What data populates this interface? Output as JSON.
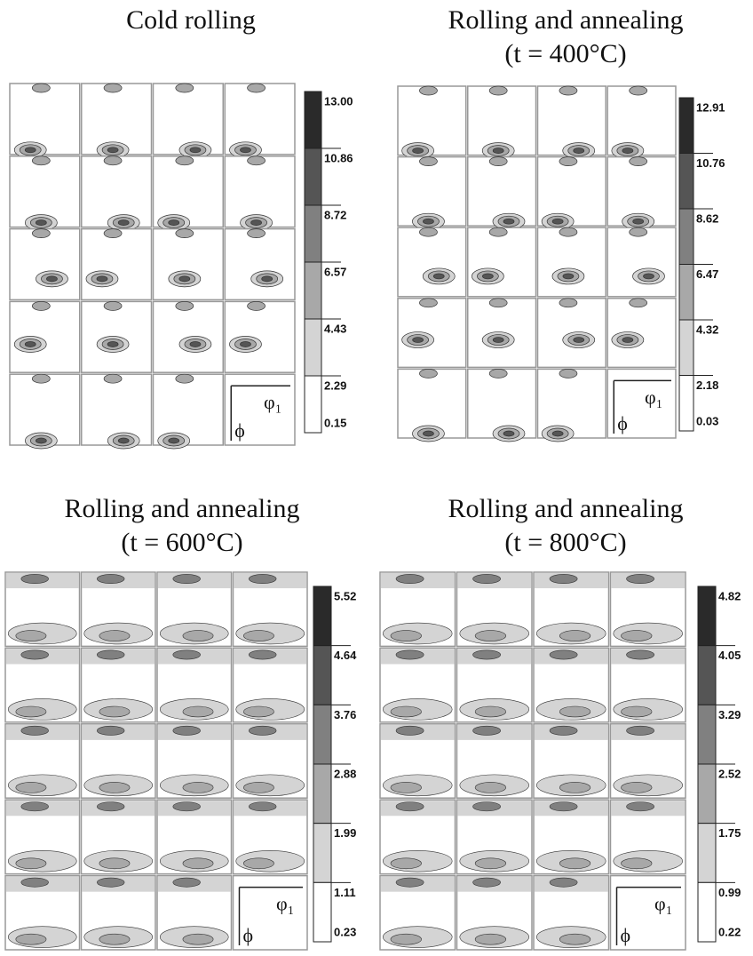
{
  "panels": [
    {
      "title": [
        "Cold rolling"
      ],
      "scale": [
        "13.00",
        "10.86",
        "8.72",
        "6.57",
        "4.43",
        "2.29",
        "0.15"
      ],
      "axis_x": "φ₁",
      "axis_y": "ϕ"
    },
    {
      "title": [
        "Rolling and annealing",
        "(t = 400°C)"
      ],
      "scale": [
        "12.91",
        "10.76",
        "8.62",
        "6.47",
        "4.32",
        "2.18",
        "0.03"
      ],
      "axis_x": "φ₁",
      "axis_y": "ϕ"
    },
    {
      "title": [
        "Rolling and annealing",
        "(t = 600°C)"
      ],
      "scale": [
        "5.52",
        "4.64",
        "3.76",
        "2.88",
        "1.99",
        "1.11",
        "0.23"
      ],
      "axis_x": "φ₁",
      "axis_y": "ϕ"
    },
    {
      "title": [
        "Rolling and annealing",
        "(t = 800°C)"
      ],
      "scale": [
        "4.82",
        "4.05",
        "3.29",
        "2.52",
        "1.75",
        "0.99",
        "0.22"
      ],
      "axis_x": "φ₁",
      "axis_y": "ϕ"
    }
  ]
}
